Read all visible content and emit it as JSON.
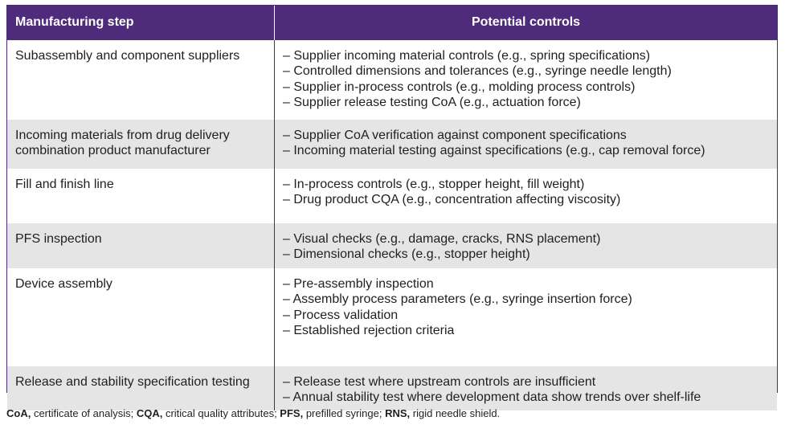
{
  "table": {
    "headers": [
      "Manufacturing step",
      "Potential controls"
    ],
    "rows": [
      {
        "step": [
          "Subassembly and component suppliers"
        ],
        "controls": [
          "– Supplier incoming material controls (e.g., spring specifications)",
          "– Controlled dimensions and tolerances (e.g., syringe needle length)",
          "– Supplier in-process controls (e.g., molding process controls)",
          "– Supplier release testing CoA (e.g., actuation force)"
        ]
      },
      {
        "step": [
          "Incoming materials from drug delivery",
          "combination product manufacturer"
        ],
        "controls": [
          "– Supplier CoA verification against component specifications",
          "– Incoming material testing against specifications (e.g., cap removal force)"
        ]
      },
      {
        "step": [
          "Fill and finish line"
        ],
        "controls": [
          "– In-process controls (e.g., stopper height, fill weight)",
          "– Drug product CQA (e.g., concentration affecting viscosity)"
        ]
      },
      {
        "step": [
          "PFS inspection"
        ],
        "controls": [
          "– Visual checks (e.g., damage, cracks, RNS placement)",
          "– Dimensional checks (e.g., stopper height)"
        ]
      },
      {
        "step": [
          "Device assembly"
        ],
        "controls": [
          "– Pre-assembly inspection",
          "– Assembly process parameters (e.g., syringe insertion force)",
          "– Process validation",
          "– Established rejection criteria"
        ]
      },
      {
        "step": [
          "Release and stability specification testing"
        ],
        "controls": [
          "– Release test where upstream controls are insufficient",
          "– Annual stability test where development data show trends over shelf-life"
        ]
      }
    ]
  },
  "footnote": [
    {
      "abbr": "CoA,",
      "text": " certificate of analysis; "
    },
    {
      "abbr": "CQA,",
      "text": " critical quality attributes; "
    },
    {
      "abbr": "PFS,",
      "text": " prefilled syringe; "
    },
    {
      "abbr": "RNS,",
      "text": " rigid needle shield."
    }
  ],
  "colors": {
    "header_bg": "#4f2b7c",
    "alt_row_bg": "#e5e5e5",
    "border": "#4b2a78"
  }
}
